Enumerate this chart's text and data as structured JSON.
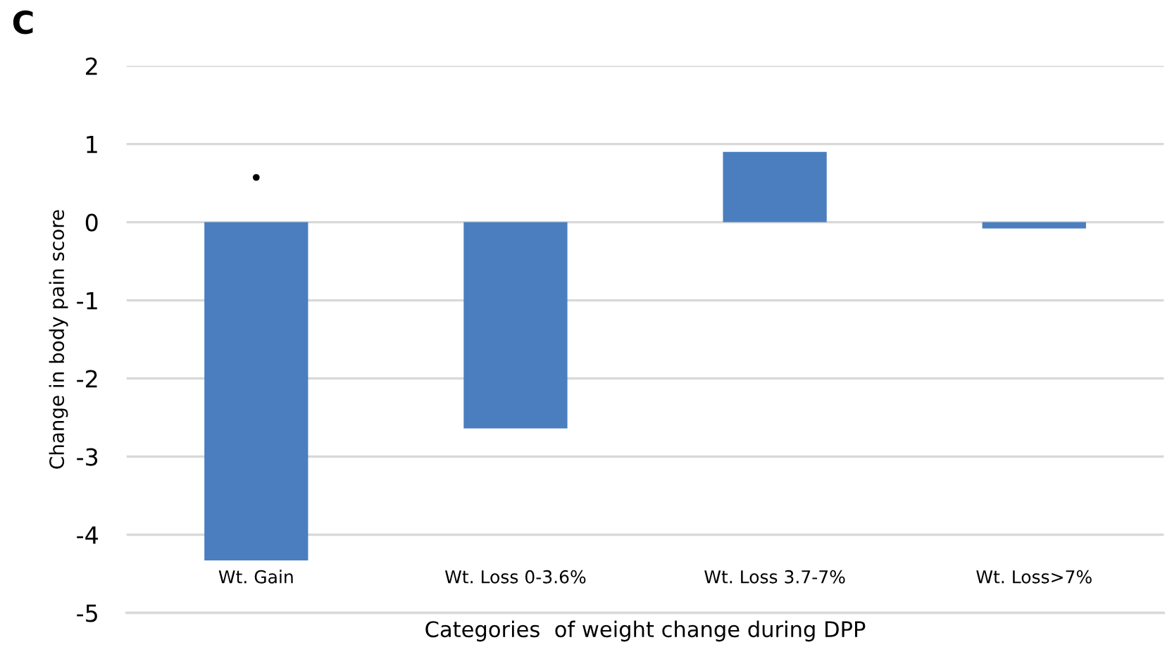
{
  "chart_data": {
    "type": "bar",
    "title": "C",
    "xlabel": "Categories  of weight change during DPP",
    "ylabel": "Change in body pain score",
    "categories": [
      "Wt. Gain",
      "Wt. Loss 0-3.6%",
      "Wt. Loss 3.7-7%",
      "Wt. Loss>7%"
    ],
    "values": [
      -4.33,
      -2.64,
      0.9,
      -0.08
    ],
    "color": "#4a7ebf",
    "ylim": [
      -5,
      2
    ],
    "yticks": [
      -5,
      -4,
      -3,
      -2,
      -1,
      0,
      1,
      2
    ],
    "grid": "y",
    "annotations": [
      "•"
    ]
  }
}
